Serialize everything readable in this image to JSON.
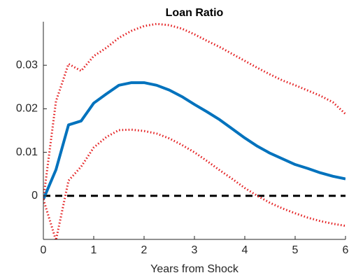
{
  "chart_data": {
    "type": "line",
    "title": "Loan Ratio",
    "x_label": "Years from Shock",
    "x": [
      0,
      0.25,
      0.5,
      0.75,
      1,
      1.25,
      1.5,
      1.75,
      2,
      2.25,
      2.5,
      2.75,
      3,
      3.25,
      3.5,
      3.75,
      4,
      4.25,
      4.5,
      4.75,
      5,
      5.25,
      5.5,
      5.75,
      6
    ],
    "series": [
      {
        "color": "#0072bd",
        "style": "solid",
        "values": [
          -0.0008,
          0.006,
          0.0163,
          0.0172,
          0.0213,
          0.0234,
          0.0254,
          0.026,
          0.026,
          0.0254,
          0.0243,
          0.0228,
          0.021,
          0.0193,
          0.0175,
          0.0154,
          0.0133,
          0.0114,
          0.0098,
          0.0085,
          0.0072,
          0.0063,
          0.0053,
          0.0045,
          0.0039
        ]
      },
      {
        "color": "#e31a1c",
        "style": "dotted",
        "values": [
          -0.0008,
          0.0217,
          0.0303,
          0.0287,
          0.0321,
          0.034,
          0.0363,
          0.0379,
          0.039,
          0.0395,
          0.0392,
          0.0384,
          0.0371,
          0.0356,
          0.0342,
          0.0326,
          0.031,
          0.0294,
          0.0279,
          0.0265,
          0.0254,
          0.0242,
          0.023,
          0.0215,
          0.0188
        ]
      },
      {
        "color": "#e31a1c",
        "style": "dotted",
        "values": [
          -0.0008,
          -0.0102,
          0.0035,
          0.0067,
          0.0111,
          0.0135,
          0.0151,
          0.0152,
          0.0149,
          0.0143,
          0.0132,
          0.0117,
          0.01,
          0.008,
          0.0059,
          0.0039,
          0.0018,
          0,
          -0.0016,
          -0.0029,
          -0.004,
          -0.005,
          -0.0058,
          -0.0064,
          -0.0069
        ]
      }
    ],
    "hline": 0,
    "xlim": [
      0,
      6
    ],
    "xticks": [
      0,
      1,
      2,
      3,
      4,
      5,
      6
    ],
    "ylim": [
      -0.01,
      0.04
    ],
    "yticks": [
      0,
      0.01,
      0.02,
      0.03
    ]
  }
}
